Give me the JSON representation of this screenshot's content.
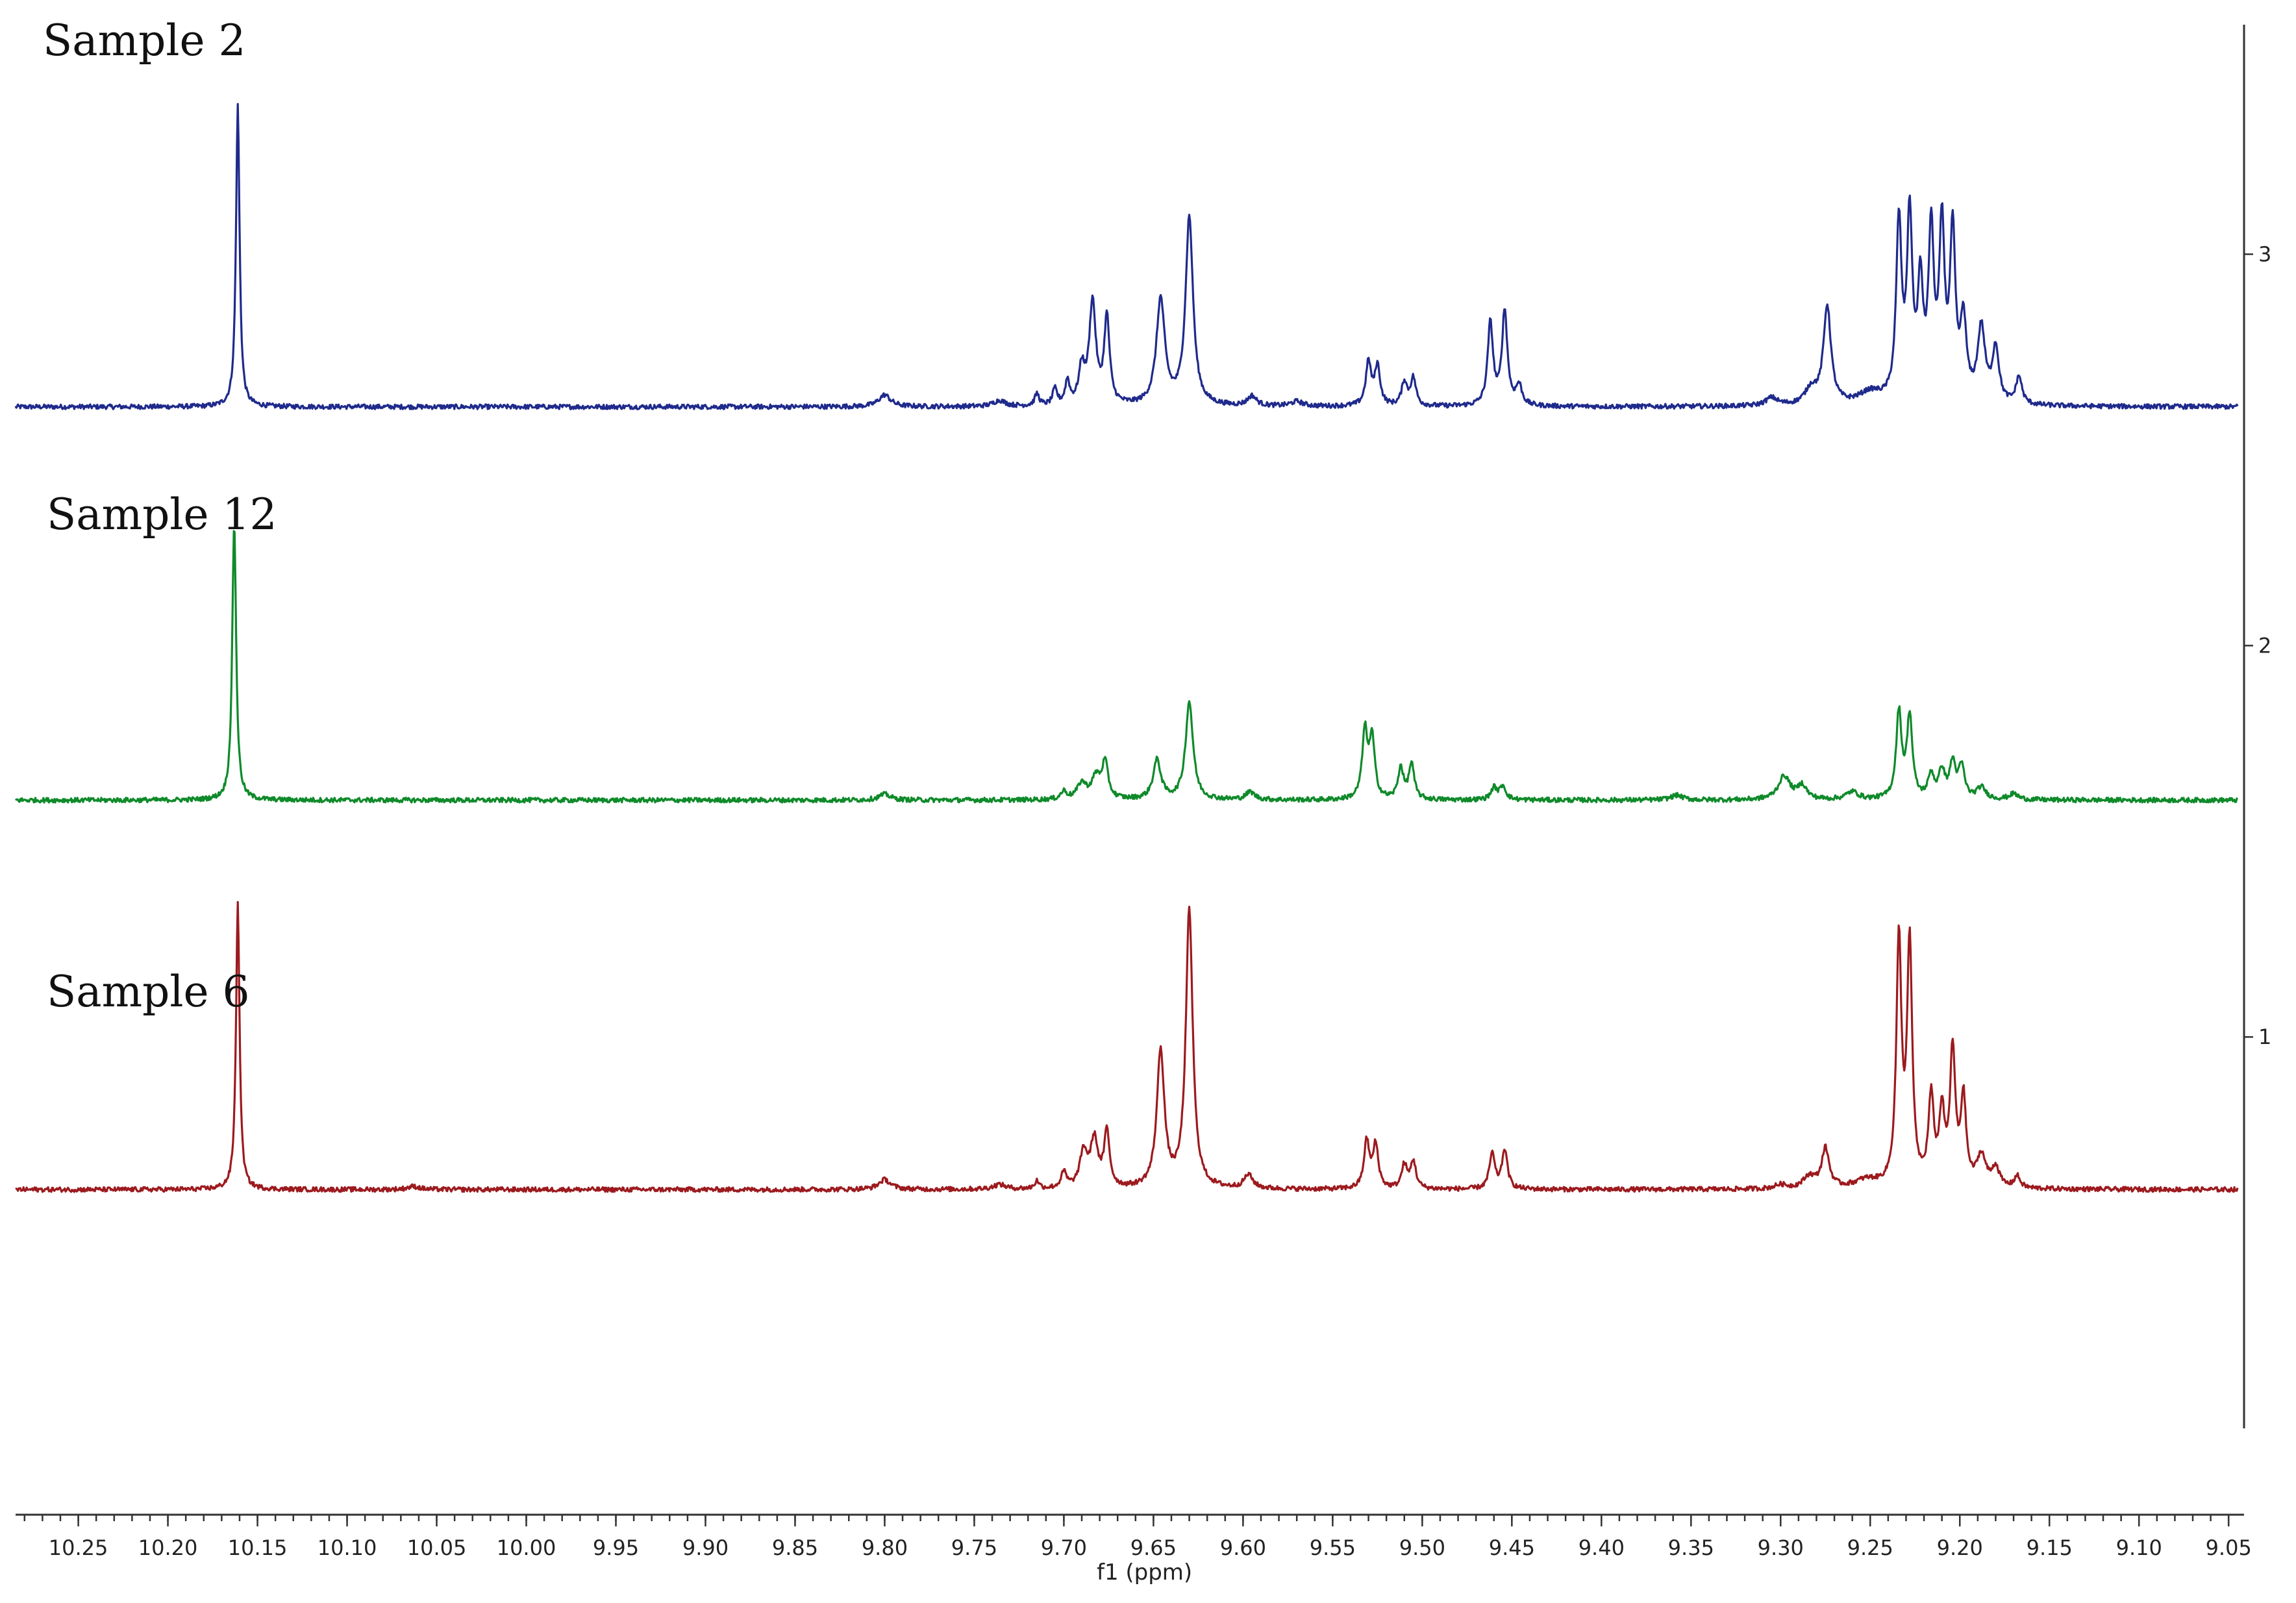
{
  "chart_data": {
    "type": "line",
    "title": "",
    "xlabel": "f1 (ppm)",
    "ylabel": "",
    "x_reversed": true,
    "xlim": [
      10.285,
      9.045
    ],
    "x_ticks": [
      10.25,
      10.2,
      10.15,
      10.1,
      10.05,
      10.0,
      9.95,
      9.9,
      9.85,
      9.8,
      9.75,
      9.7,
      9.65,
      9.6,
      9.55,
      9.5,
      9.45,
      9.4,
      9.35,
      9.3,
      9.25,
      9.2,
      9.15,
      9.1,
      9.05
    ],
    "x_tick_labels": [
      "10.25",
      "10.20",
      "10.15",
      "10.10",
      "10.05",
      "10.00",
      "9.95",
      "9.90",
      "9.85",
      "9.80",
      "9.75",
      "9.70",
      "9.65",
      "9.60",
      "9.55",
      "9.50",
      "9.45",
      "9.40",
      "9.35",
      "9.30",
      "9.25",
      "9.20",
      "9.15",
      "9.10",
      "9.05"
    ],
    "y_ticks": [
      3,
      2,
      1
    ],
    "y_tick_labels": [
      "3",
      "2",
      "1"
    ],
    "ylim": [
      0,
      3.55
    ],
    "grid": false,
    "legend": "none",
    "series": [
      {
        "name": "Sample 2",
        "color": "#1f2a8c",
        "baseline": 2.61,
        "peaks": [
          {
            "ppm": 10.161,
            "height": 0.77,
            "width": 0.0012
          },
          {
            "ppm": 9.8,
            "height": 0.03,
            "width": 0.004
          },
          {
            "ppm": 9.736,
            "height": 0.015,
            "width": 0.004
          },
          {
            "ppm": 9.715,
            "height": 0.03,
            "width": 0.0015
          },
          {
            "ppm": 9.705,
            "height": 0.04,
            "width": 0.0015
          },
          {
            "ppm": 9.698,
            "height": 0.06,
            "width": 0.0015
          },
          {
            "ppm": 9.69,
            "height": 0.09,
            "width": 0.002
          },
          {
            "ppm": 9.684,
            "height": 0.26,
            "width": 0.0022
          },
          {
            "ppm": 9.676,
            "height": 0.22,
            "width": 0.0018
          },
          {
            "ppm": 9.646,
            "height": 0.27,
            "width": 0.0028
          },
          {
            "ppm": 9.63,
            "height": 0.48,
            "width": 0.0025
          },
          {
            "ppm": 9.595,
            "height": 0.025,
            "width": 0.003
          },
          {
            "ppm": 9.57,
            "height": 0.012,
            "width": 0.004
          },
          {
            "ppm": 9.53,
            "height": 0.11,
            "width": 0.0018
          },
          {
            "ppm": 9.525,
            "height": 0.1,
            "width": 0.0018
          },
          {
            "ppm": 9.51,
            "height": 0.06,
            "width": 0.0018
          },
          {
            "ppm": 9.505,
            "height": 0.07,
            "width": 0.0018
          },
          {
            "ppm": 9.462,
            "height": 0.21,
            "width": 0.0018
          },
          {
            "ppm": 9.454,
            "height": 0.24,
            "width": 0.0018
          },
          {
            "ppm": 9.446,
            "height": 0.05,
            "width": 0.002
          },
          {
            "ppm": 9.305,
            "height": 0.02,
            "width": 0.004
          },
          {
            "ppm": 9.283,
            "height": 0.04,
            "width": 0.004
          },
          {
            "ppm": 9.274,
            "height": 0.25,
            "width": 0.0025
          },
          {
            "ppm": 9.25,
            "height": 0.03,
            "width": 0.008
          },
          {
            "ppm": 9.234,
            "height": 0.45,
            "width": 0.0018
          },
          {
            "ppm": 9.228,
            "height": 0.46,
            "width": 0.0018
          },
          {
            "ppm": 9.222,
            "height": 0.28,
            "width": 0.0018
          },
          {
            "ppm": 9.216,
            "height": 0.42,
            "width": 0.0018
          },
          {
            "ppm": 9.21,
            "height": 0.43,
            "width": 0.0018
          },
          {
            "ppm": 9.204,
            "height": 0.42,
            "width": 0.0018
          },
          {
            "ppm": 9.198,
            "height": 0.2,
            "width": 0.002
          },
          {
            "ppm": 9.188,
            "height": 0.19,
            "width": 0.0025
          },
          {
            "ppm": 9.18,
            "height": 0.14,
            "width": 0.0022
          },
          {
            "ppm": 9.167,
            "height": 0.07,
            "width": 0.002
          }
        ]
      },
      {
        "name": "Sample 12",
        "color": "#0f8a2a",
        "baseline": 1.605,
        "peaks": [
          {
            "ppm": 10.163,
            "height": 0.71,
            "width": 0.0013
          },
          {
            "ppm": 9.8,
            "height": 0.015,
            "width": 0.004
          },
          {
            "ppm": 9.7,
            "height": 0.02,
            "width": 0.002
          },
          {
            "ppm": 9.69,
            "height": 0.04,
            "width": 0.003
          },
          {
            "ppm": 9.682,
            "height": 0.055,
            "width": 0.003
          },
          {
            "ppm": 9.677,
            "height": 0.09,
            "width": 0.002
          },
          {
            "ppm": 9.648,
            "height": 0.1,
            "width": 0.0026
          },
          {
            "ppm": 9.63,
            "height": 0.25,
            "width": 0.0025
          },
          {
            "ppm": 9.596,
            "height": 0.02,
            "width": 0.003
          },
          {
            "ppm": 9.532,
            "height": 0.17,
            "width": 0.0018
          },
          {
            "ppm": 9.528,
            "height": 0.15,
            "width": 0.0018
          },
          {
            "ppm": 9.512,
            "height": 0.08,
            "width": 0.0018
          },
          {
            "ppm": 9.506,
            "height": 0.09,
            "width": 0.0018
          },
          {
            "ppm": 9.46,
            "height": 0.03,
            "width": 0.002
          },
          {
            "ppm": 9.455,
            "height": 0.035,
            "width": 0.002
          },
          {
            "ppm": 9.358,
            "height": 0.012,
            "width": 0.004
          },
          {
            "ppm": 9.298,
            "height": 0.06,
            "width": 0.004
          },
          {
            "ppm": 9.288,
            "height": 0.035,
            "width": 0.003
          },
          {
            "ppm": 9.26,
            "height": 0.02,
            "width": 0.004
          },
          {
            "ppm": 9.234,
            "height": 0.22,
            "width": 0.0018
          },
          {
            "ppm": 9.228,
            "height": 0.21,
            "width": 0.0018
          },
          {
            "ppm": 9.216,
            "height": 0.06,
            "width": 0.002
          },
          {
            "ppm": 9.21,
            "height": 0.07,
            "width": 0.002
          },
          {
            "ppm": 9.204,
            "height": 0.09,
            "width": 0.002
          },
          {
            "ppm": 9.199,
            "height": 0.08,
            "width": 0.002
          },
          {
            "ppm": 9.188,
            "height": 0.03,
            "width": 0.003
          },
          {
            "ppm": 9.17,
            "height": 0.015,
            "width": 0.003
          }
        ]
      },
      {
        "name": "Sample 6",
        "color": "#9c1a1e",
        "baseline": 0.61,
        "peaks": [
          {
            "ppm": 10.161,
            "height": 0.73,
            "width": 0.0012
          },
          {
            "ppm": 10.063,
            "height": 0.008,
            "width": 0.004
          },
          {
            "ppm": 9.8,
            "height": 0.025,
            "width": 0.004
          },
          {
            "ppm": 9.736,
            "height": 0.012,
            "width": 0.004
          },
          {
            "ppm": 9.715,
            "height": 0.02,
            "width": 0.0015
          },
          {
            "ppm": 9.7,
            "height": 0.04,
            "width": 0.0018
          },
          {
            "ppm": 9.689,
            "height": 0.09,
            "width": 0.0025
          },
          {
            "ppm": 9.683,
            "height": 0.12,
            "width": 0.0025
          },
          {
            "ppm": 9.676,
            "height": 0.14,
            "width": 0.0018
          },
          {
            "ppm": 9.646,
            "height": 0.35,
            "width": 0.0025
          },
          {
            "ppm": 9.63,
            "height": 0.71,
            "width": 0.0023
          },
          {
            "ppm": 9.597,
            "height": 0.035,
            "width": 0.003
          },
          {
            "ppm": 9.531,
            "height": 0.12,
            "width": 0.0018
          },
          {
            "ppm": 9.526,
            "height": 0.11,
            "width": 0.0018
          },
          {
            "ppm": 9.51,
            "height": 0.06,
            "width": 0.0018
          },
          {
            "ppm": 9.505,
            "height": 0.07,
            "width": 0.0018
          },
          {
            "ppm": 9.461,
            "height": 0.09,
            "width": 0.0018
          },
          {
            "ppm": 9.454,
            "height": 0.1,
            "width": 0.0018
          },
          {
            "ppm": 9.3,
            "height": 0.01,
            "width": 0.004
          },
          {
            "ppm": 9.284,
            "height": 0.03,
            "width": 0.004
          },
          {
            "ppm": 9.275,
            "height": 0.1,
            "width": 0.0025
          },
          {
            "ppm": 9.252,
            "height": 0.02,
            "width": 0.008
          },
          {
            "ppm": 9.234,
            "height": 0.62,
            "width": 0.0017
          },
          {
            "ppm": 9.228,
            "height": 0.61,
            "width": 0.0017
          },
          {
            "ppm": 9.216,
            "height": 0.22,
            "width": 0.0018
          },
          {
            "ppm": 9.21,
            "height": 0.18,
            "width": 0.0018
          },
          {
            "ppm": 9.204,
            "height": 0.34,
            "width": 0.0018
          },
          {
            "ppm": 9.198,
            "height": 0.22,
            "width": 0.0018
          },
          {
            "ppm": 9.188,
            "height": 0.08,
            "width": 0.003
          },
          {
            "ppm": 9.18,
            "height": 0.05,
            "width": 0.0025
          },
          {
            "ppm": 9.168,
            "height": 0.03,
            "width": 0.002
          }
        ]
      }
    ]
  }
}
